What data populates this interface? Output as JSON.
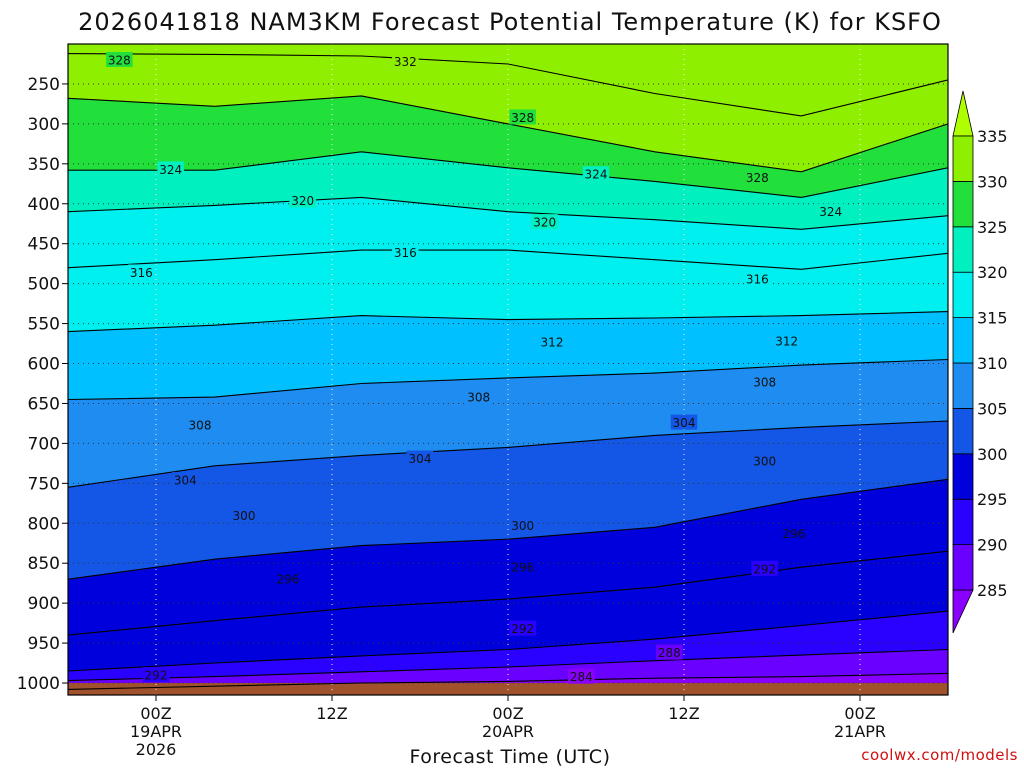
{
  "chart_data": {
    "type": "heatmap",
    "title": "2026041818 NAM3KM Forecast Potential Temperature (K) for KSFO",
    "xlabel": "Forecast Time (UTC)",
    "ylabel": "",
    "y_axis": {
      "unit": "hPa",
      "ticks": [
        250,
        300,
        350,
        400,
        450,
        500,
        550,
        600,
        650,
        700,
        750,
        800,
        850,
        900,
        950,
        1000
      ],
      "ylim": [
        200,
        1015
      ]
    },
    "x_axis": {
      "unit": "forecast hours",
      "xlim": [
        0,
        60
      ],
      "ticks": [
        {
          "hour": 6,
          "lines": [
            "00Z",
            "19APR",
            "2026"
          ]
        },
        {
          "hour": 18,
          "lines": [
            "12Z"
          ]
        },
        {
          "hour": 30,
          "lines": [
            "00Z",
            "20APR"
          ]
        },
        {
          "hour": 42,
          "lines": [
            "12Z"
          ]
        },
        {
          "hour": 54,
          "lines": [
            "00Z",
            "21APR"
          ]
        }
      ]
    },
    "colorbar": {
      "levels": [
        285,
        290,
        295,
        300,
        305,
        310,
        315,
        320,
        325,
        330,
        335
      ],
      "colors": [
        "#8a00ff",
        "#6a00ff",
        "#2a00ff",
        "#0000dd",
        "#1456e6",
        "#1e8cf0",
        "#00c0ff",
        "#00f0f0",
        "#00f0c0",
        "#22e03c",
        "#8ef000",
        "#b0ff00"
      ]
    },
    "contour_interval_K": 4,
    "series": [
      {
        "name": "284",
        "values": [
          [
            0,
            1008
          ],
          [
            10,
            1004
          ],
          [
            20,
            1000
          ],
          [
            30,
            998
          ],
          [
            40,
            994
          ],
          [
            50,
            992
          ],
          [
            60,
            988
          ]
        ]
      },
      {
        "name": "288",
        "values": [
          [
            0,
            997
          ],
          [
            10,
            992
          ],
          [
            20,
            986
          ],
          [
            30,
            980
          ],
          [
            40,
            972
          ],
          [
            50,
            965
          ],
          [
            60,
            958
          ]
        ]
      },
      {
        "name": "292",
        "values": [
          [
            0,
            985
          ],
          [
            10,
            975
          ],
          [
            20,
            966
          ],
          [
            30,
            958
          ],
          [
            40,
            945
          ],
          [
            50,
            928
          ],
          [
            60,
            910
          ]
        ]
      },
      {
        "name": "296",
        "values": [
          [
            0,
            940
          ],
          [
            10,
            922
          ],
          [
            20,
            905
          ],
          [
            30,
            895
          ],
          [
            40,
            880
          ],
          [
            50,
            855
          ],
          [
            60,
            835
          ]
        ]
      },
      {
        "name": "300",
        "values": [
          [
            0,
            870
          ],
          [
            10,
            845
          ],
          [
            20,
            828
          ],
          [
            30,
            820
          ],
          [
            40,
            805
          ],
          [
            50,
            770
          ],
          [
            60,
            745
          ]
        ]
      },
      {
        "name": "304",
        "values": [
          [
            0,
            755
          ],
          [
            10,
            728
          ],
          [
            20,
            715
          ],
          [
            30,
            705
          ],
          [
            40,
            690
          ],
          [
            50,
            680
          ],
          [
            60,
            672
          ]
        ]
      },
      {
        "name": "308",
        "values": [
          [
            0,
            645
          ],
          [
            10,
            642
          ],
          [
            20,
            625
          ],
          [
            30,
            618
          ],
          [
            40,
            612
          ],
          [
            50,
            602
          ],
          [
            60,
            595
          ]
        ]
      },
      {
        "name": "312",
        "values": [
          [
            0,
            560
          ],
          [
            10,
            552
          ],
          [
            20,
            540
          ],
          [
            30,
            545
          ],
          [
            40,
            543
          ],
          [
            50,
            540
          ],
          [
            60,
            535
          ]
        ]
      },
      {
        "name": "316",
        "values": [
          [
            0,
            480
          ],
          [
            10,
            470
          ],
          [
            20,
            458
          ],
          [
            30,
            458
          ],
          [
            40,
            470
          ],
          [
            50,
            482
          ],
          [
            60,
            462
          ]
        ]
      },
      {
        "name": "320",
        "values": [
          [
            0,
            410
          ],
          [
            10,
            402
          ],
          [
            20,
            392
          ],
          [
            30,
            410
          ],
          [
            40,
            420
          ],
          [
            50,
            432
          ],
          [
            60,
            415
          ]
        ]
      },
      {
        "name": "324",
        "values": [
          [
            0,
            358
          ],
          [
            10,
            358
          ],
          [
            20,
            335
          ],
          [
            30,
            355
          ],
          [
            40,
            372
          ],
          [
            50,
            392
          ],
          [
            60,
            355
          ]
        ]
      },
      {
        "name": "328",
        "values": [
          [
            0,
            268
          ],
          [
            10,
            278
          ],
          [
            20,
            265
          ],
          [
            30,
            300
          ],
          [
            40,
            335
          ],
          [
            50,
            360
          ],
          [
            60,
            300
          ]
        ]
      },
      {
        "name": "332",
        "values": [
          [
            0,
            212
          ],
          [
            10,
            213
          ],
          [
            20,
            215
          ],
          [
            30,
            225
          ],
          [
            40,
            262
          ],
          [
            50,
            290
          ],
          [
            60,
            245
          ]
        ]
      }
    ],
    "contour_labels": [
      {
        "text": "328",
        "x": 3.5,
        "y": 220
      },
      {
        "text": "332",
        "x": 23,
        "y": 222
      },
      {
        "text": "328",
        "x": 31,
        "y": 292
      },
      {
        "text": "324",
        "x": 7,
        "y": 357
      },
      {
        "text": "324",
        "x": 36,
        "y": 363
      },
      {
        "text": "328",
        "x": 47,
        "y": 367
      },
      {
        "text": "320",
        "x": 16,
        "y": 396
      },
      {
        "text": "320",
        "x": 32.5,
        "y": 423
      },
      {
        "text": "324",
        "x": 52,
        "y": 410
      },
      {
        "text": "316",
        "x": 23,
        "y": 461
      },
      {
        "text": "316",
        "x": 5,
        "y": 486
      },
      {
        "text": "316",
        "x": 47,
        "y": 494
      },
      {
        "text": "312",
        "x": 33,
        "y": 573
      },
      {
        "text": "312",
        "x": 49,
        "y": 572
      },
      {
        "text": "308",
        "x": 28,
        "y": 642
      },
      {
        "text": "308",
        "x": 47.5,
        "y": 623
      },
      {
        "text": "308",
        "x": 9,
        "y": 677
      },
      {
        "text": "304",
        "x": 42,
        "y": 674
      },
      {
        "text": "304",
        "x": 24,
        "y": 719
      },
      {
        "text": "304",
        "x": 8,
        "y": 746
      },
      {
        "text": "300",
        "x": 47.5,
        "y": 722
      },
      {
        "text": "300",
        "x": 12,
        "y": 790
      },
      {
        "text": "300",
        "x": 31,
        "y": 803
      },
      {
        "text": "296",
        "x": 49.5,
        "y": 813
      },
      {
        "text": "296",
        "x": 15,
        "y": 870
      },
      {
        "text": "296",
        "x": 31,
        "y": 855
      },
      {
        "text": "292",
        "x": 47.5,
        "y": 857
      },
      {
        "text": "292",
        "x": 31,
        "y": 932
      },
      {
        "text": "288",
        "x": 41,
        "y": 962
      },
      {
        "text": "292",
        "x": 6,
        "y": 990
      },
      {
        "text": "284",
        "x": 35,
        "y": 992
      }
    ],
    "terrain": {
      "top": 1000,
      "color": "#a0522d"
    }
  },
  "watermark": "coolwx.com/models"
}
